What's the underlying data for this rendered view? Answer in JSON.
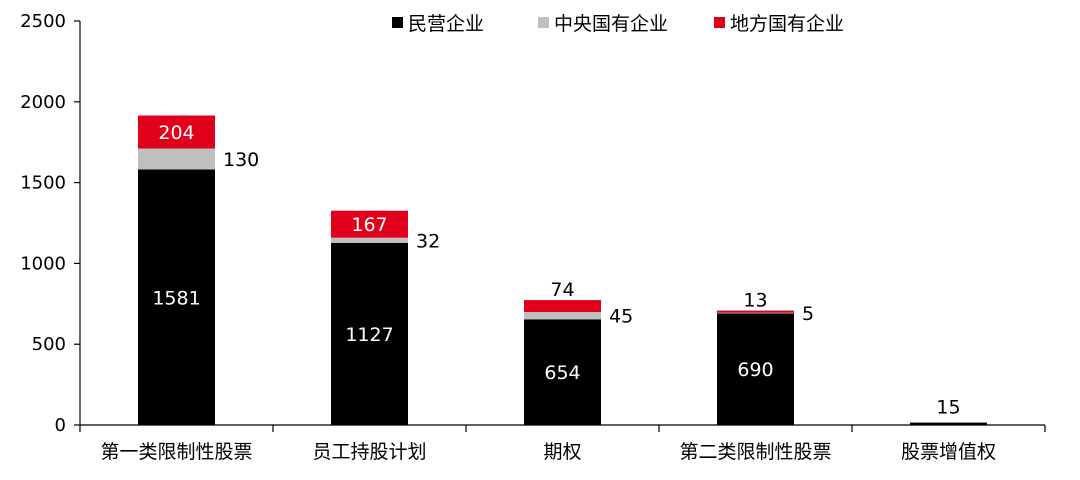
{
  "chart_data": {
    "type": "bar",
    "stacked": true,
    "categories": [
      "第一类限制性股票",
      "员工持股计划",
      "期权",
      "第二类限制性股票",
      "股票增值权"
    ],
    "series": [
      {
        "name": "民营企业",
        "color": "#000000",
        "values": [
          1581,
          1127,
          654,
          690,
          15
        ]
      },
      {
        "name": "中央国有企业",
        "color": "#BFBFBF",
        "values": [
          130,
          32,
          45,
          5,
          0
        ]
      },
      {
        "name": "地方国有企业",
        "color": "#E0001B",
        "values": [
          204,
          167,
          74,
          13,
          0
        ]
      }
    ],
    "ylim": [
      0,
      2500
    ],
    "yticks": [
      0,
      500,
      1000,
      1500,
      2000,
      2500
    ],
    "legend_position": "top",
    "grid": false,
    "title": "",
    "xlabel": "",
    "ylabel": ""
  }
}
